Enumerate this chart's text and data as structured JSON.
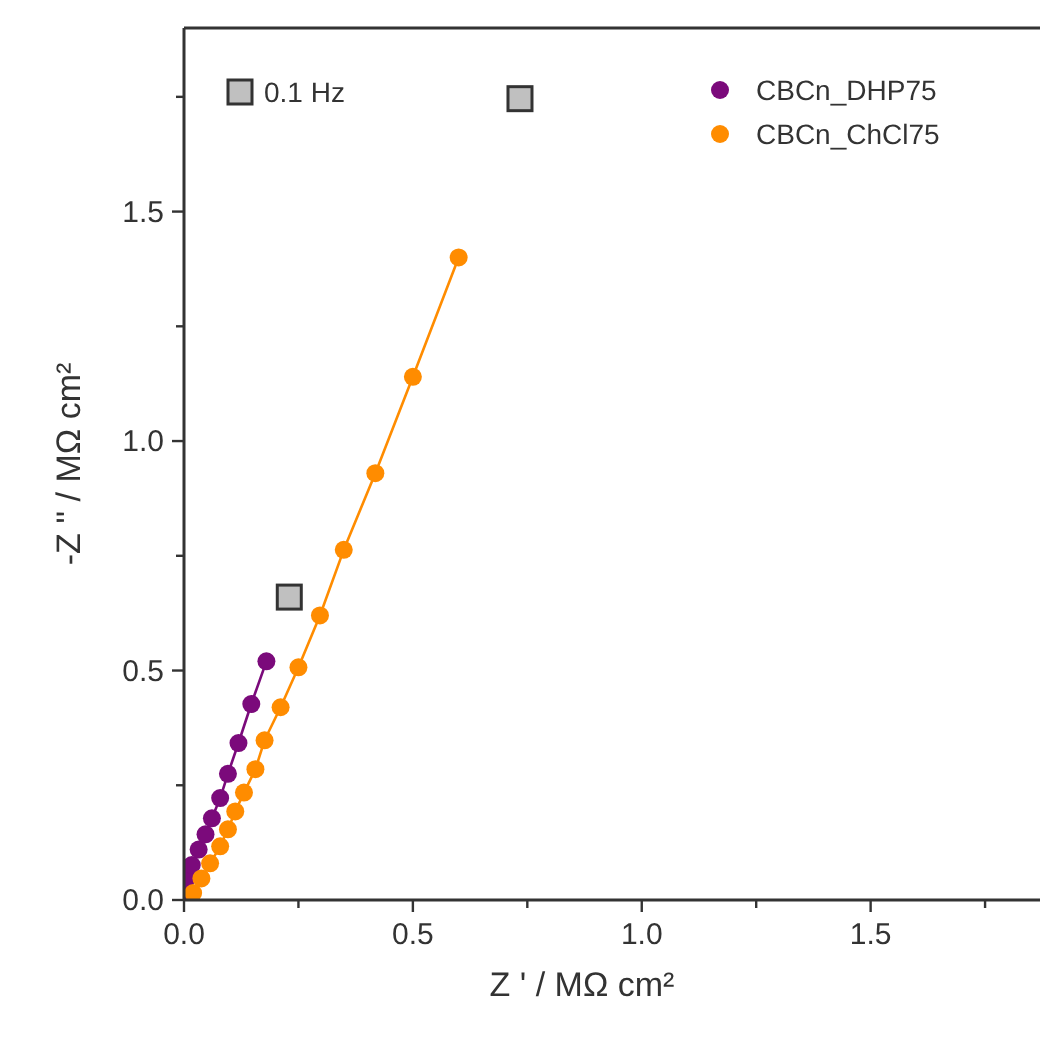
{
  "chart_data": {
    "type": "line",
    "xlabel": "Z ' / MΩ cm²",
    "ylabel": "-Z '' / MΩ cm²",
    "xlim": [
      0,
      1.87
    ],
    "ylim": [
      0,
      1.9
    ],
    "xticks": [
      {
        "value": 0,
        "label": "0.0"
      },
      {
        "value": 0.25,
        "label": null
      },
      {
        "value": 0.5,
        "label": "0.5"
      },
      {
        "value": 0.75,
        "label": null
      },
      {
        "value": 1,
        "label": "1.0"
      },
      {
        "value": 1.25,
        "label": null
      },
      {
        "value": 1.5,
        "label": "1.5"
      },
      {
        "value": 1.75,
        "label": null
      }
    ],
    "yticks": [
      {
        "value": 0,
        "label": "0.0"
      },
      {
        "value": 0.25,
        "label": null
      },
      {
        "value": 0.5,
        "label": "0.5"
      },
      {
        "value": 0.75,
        "label": null
      },
      {
        "value": 1,
        "label": "1.0"
      },
      {
        "value": 1.25,
        "label": null
      },
      {
        "value": 1.5,
        "label": "1.5"
      },
      {
        "value": 1.75,
        "label": null
      }
    ],
    "grid": false,
    "legend": "top right",
    "marker": "circle",
    "line_style": "solid",
    "series": [
      {
        "name": "CBCn_DHP75",
        "color": "#7b0a7b",
        "x": [
          0,
          0.006,
          0.017,
          0.032,
          0.047,
          0.061,
          0.079,
          0.096,
          0.119,
          0.147,
          0.18
        ],
        "values": [
          0.015,
          0.047,
          0.076,
          0.11,
          0.143,
          0.178,
          0.222,
          0.275,
          0.342,
          0.427,
          0.52
        ]
      },
      {
        "name": "CBCn_ChCl75",
        "color": "#ff8c00",
        "x": [
          0.02,
          0.038,
          0.057,
          0.079,
          0.096,
          0.112,
          0.131,
          0.156,
          0.176,
          0.211,
          0.25,
          0.297,
          0.349,
          0.418,
          0.5,
          0.6
        ],
        "values": [
          0.015,
          0.047,
          0.08,
          0.117,
          0.154,
          0.193,
          0.234,
          0.285,
          0.348,
          0.42,
          0.507,
          0.62,
          0.763,
          0.93,
          1.14,
          1.4
        ]
      },
      {
        "name": "0.1 Hz",
        "type": "scatter",
        "marker": "square",
        "color": "#c0c0c0",
        "x": [
          0.23,
          0.734
        ],
        "values": [
          0.66,
          1.746
        ]
      }
    ]
  }
}
